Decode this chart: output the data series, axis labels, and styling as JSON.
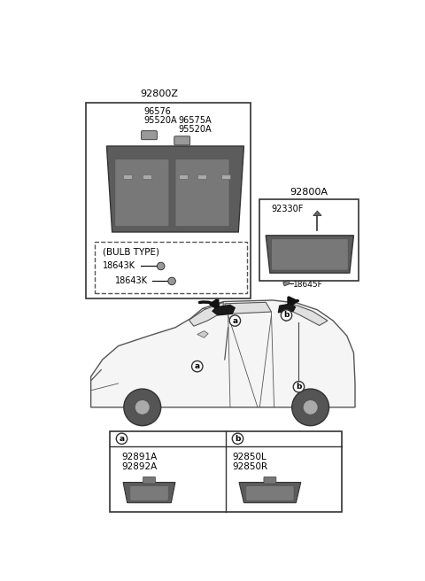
{
  "bg_color": "#ffffff",
  "text_color": "#000000",
  "box_color": "#333333",
  "dash_color": "#555555",
  "part_color": "#666666",
  "part_color_light": "#888888",
  "arrow_color": "#111111",
  "main_box_label": "92800Z",
  "parts_top_left": [
    "96576",
    "95520A"
  ],
  "parts_top_right": [
    "96575A",
    "95520A"
  ],
  "bulb_label": "(BULB TYPE)",
  "bulb_parts": [
    "18643K",
    "18643K"
  ],
  "side_box_label": "92800A",
  "side_parts": [
    "92330F",
    "18645F"
  ],
  "table_a_parts": [
    "92891A",
    "92892A"
  ],
  "table_b_parts": [
    "92850L",
    "92850R"
  ]
}
